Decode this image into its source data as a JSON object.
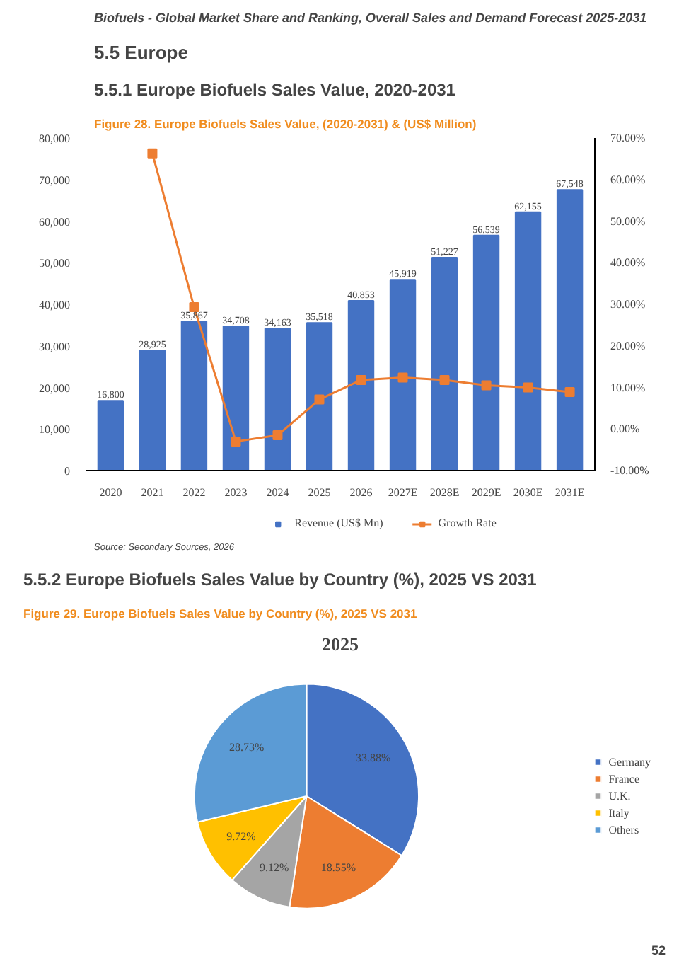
{
  "chart_data": [
    {
      "type": "bar",
      "title": "Figure 28.  Europe Biofuels Sales Value, (2020-2031) & (US$ Million)",
      "annotations": [
        "Biofuels - Global Market Share and Ranking, Overall Sales and Demand Forecast 2025-2031",
        "5.5  Europe",
        "5.5.1  Europe Biofuels Sales Value, 2020-2031",
        "Source: Secondary Sources, 2026"
      ],
      "categories": [
        "2020",
        "2021",
        "2022",
        "2023",
        "2024",
        "2025",
        "2026",
        "2027E",
        "2028E",
        "2029E",
        "2030E",
        "2031E"
      ],
      "series": [
        {
          "name": "Revenue (US$ Mn)",
          "type": "bar",
          "color": "#4472c4",
          "values": [
            16800,
            28925,
            35867,
            34708,
            34163,
            35518,
            40853,
            45919,
            51227,
            56539,
            62155,
            67548
          ],
          "value_labels": [
            "16,800",
            "28,925",
            "35,867",
            "34,708",
            "34,163",
            "35,518",
            "40,853",
            "45,919",
            "51,227",
            "56,539",
            "62,155",
            "67,548"
          ]
        },
        {
          "name": "Growth Rate",
          "type": "line",
          "axis": "y2",
          "color": "#ed7d31",
          "marker": "square",
          "values": [
            null,
            66.3,
            29.3,
            -3.0,
            -1.5,
            7.1,
            11.8,
            12.4,
            11.8,
            10.5,
            10.0,
            8.9
          ]
        }
      ],
      "ylim": [
        0,
        80000
      ],
      "yticks": [
        0,
        {
          "value": 10000,
          "label": "10,000"
        },
        {
          "value": 20000,
          "label": "20,000"
        },
        {
          "value": 30000,
          "label": "30,000"
        },
        {
          "value": 40000,
          "label": "40,000"
        },
        {
          "value": 50000,
          "label": "50,000"
        },
        {
          "value": 60000,
          "label": "60,000"
        },
        {
          "value": 70000,
          "label": "70,000"
        },
        {
          "value": 80000,
          "label": "80,000"
        }
      ],
      "y2lim": [
        -10,
        70
      ],
      "y2ticks": [
        {
          "value": -10,
          "label": "-10.00%"
        },
        {
          "value": 0,
          "label": "0.00%"
        },
        {
          "value": 10,
          "label": "10.00%"
        },
        {
          "value": 20,
          "label": "20.00%"
        },
        {
          "value": 30,
          "label": "30.00%"
        },
        {
          "value": 40,
          "label": "40.00%"
        },
        {
          "value": 50,
          "label": "50.00%"
        },
        {
          "value": 60,
          "label": "60.00%"
        },
        {
          "value": 70,
          "label": "70.00%"
        }
      ],
      "legend": "bottom"
    },
    {
      "type": "pie",
      "title": "Figure 29.  Europe Biofuels Sales Value by Country (%), 2025 VS 2031",
      "subtitle": "2025",
      "annotations": [
        "5.5.2  Europe Biofuels Sales Value by Country (%), 2025 VS 2031",
        "52"
      ],
      "categories": [
        "Germany",
        "France",
        "U.K.",
        "Italy",
        "Others"
      ],
      "values": [
        33.88,
        18.55,
        9.12,
        9.72,
        28.73
      ],
      "value_labels": [
        "33.88%",
        "18.55%",
        "9.12%",
        "9.72%",
        "28.73%"
      ],
      "colors": [
        "#4472c4",
        "#ed7d31",
        "#a5a5a5",
        "#ffc000",
        "#5b9bd5"
      ],
      "legend": "right"
    }
  ]
}
